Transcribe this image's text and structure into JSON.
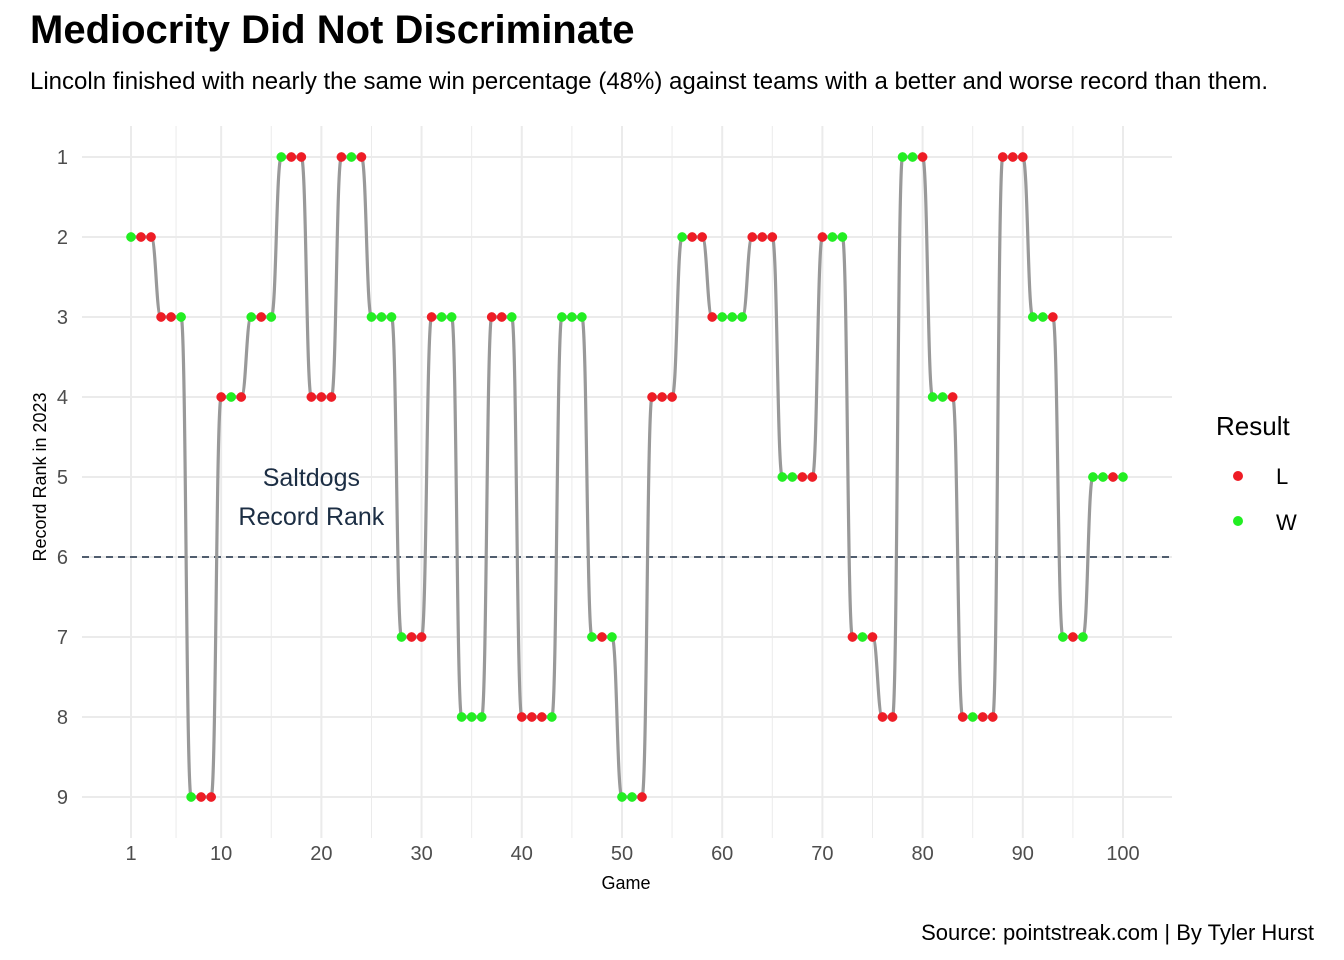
{
  "title": "Mediocrity Did Not Discriminate",
  "subtitle": "Lincoln finished with nearly the same win percentage (48%) against teams with a better and worse record than them.",
  "caption": "Source: pointstreak.com | By Tyler Hurst",
  "colors": {
    "L": "#ee1c25",
    "W": "#22ee22",
    "line": "#999999",
    "reference": "#1c2e44",
    "grid": "#ebebeb"
  },
  "chart_data": {
    "type": "line",
    "xlabel": "Game",
    "ylabel": "Record Rank in 2023",
    "xlim": [
      1,
      100
    ],
    "ylim": [
      9,
      1
    ],
    "x_ticks": [
      1,
      10,
      20,
      30,
      40,
      50,
      60,
      70,
      80,
      90,
      100
    ],
    "y_ticks": [
      1,
      2,
      3,
      4,
      5,
      6,
      7,
      8,
      9
    ],
    "y_reversed": true,
    "grid": true,
    "reference_line": {
      "y": 6,
      "style": "dashed"
    },
    "annotation": {
      "lines": [
        "Saltdogs",
        "Record Rank"
      ],
      "x": 19,
      "y": 5.25
    },
    "legend": {
      "title": "Result",
      "position": "right",
      "entries": [
        "L",
        "W"
      ]
    },
    "games": [
      1,
      2,
      3,
      4,
      5,
      6,
      7,
      8,
      9,
      10,
      11,
      12,
      13,
      14,
      15,
      16,
      17,
      18,
      19,
      20,
      21,
      22,
      23,
      24,
      25,
      26,
      27,
      28,
      29,
      30,
      31,
      32,
      33,
      34,
      35,
      36,
      37,
      38,
      39,
      40,
      41,
      42,
      43,
      44,
      45,
      46,
      47,
      48,
      49,
      50,
      51,
      52,
      53,
      54,
      55,
      56,
      57,
      58,
      59,
      60,
      61,
      62,
      63,
      64,
      65,
      66,
      67,
      68,
      69,
      70,
      71,
      72,
      73,
      74,
      75,
      76,
      77,
      78,
      79,
      80,
      81,
      82,
      83,
      84,
      85,
      86,
      87,
      88,
      89,
      90,
      91,
      92,
      93,
      94,
      95,
      96,
      97,
      98,
      99,
      100
    ],
    "opponent_rank": [
      2,
      2,
      2,
      3,
      3,
      3,
      9,
      9,
      9,
      4,
      4,
      4,
      3,
      3,
      3,
      1,
      1,
      1,
      4,
      4,
      4,
      1,
      1,
      1,
      3,
      3,
      3,
      7,
      7,
      7,
      3,
      3,
      3,
      8,
      8,
      8,
      3,
      3,
      3,
      8,
      8,
      8,
      8,
      3,
      3,
      3,
      7,
      7,
      7,
      9,
      9,
      9,
      4,
      4,
      4,
      2,
      2,
      2,
      3,
      3,
      3,
      3,
      2,
      2,
      2,
      5,
      5,
      5,
      5,
      2,
      2,
      2,
      7,
      7,
      7,
      8,
      8,
      1,
      1,
      1,
      4,
      4,
      4,
      8,
      8,
      8,
      8,
      1,
      1,
      1,
      3,
      3,
      3,
      7,
      7,
      7,
      5,
      5,
      5,
      5
    ],
    "result": [
      "W",
      "L",
      "L",
      "L",
      "L",
      "W",
      "W",
      "L",
      "L",
      "L",
      "W",
      "L",
      "W",
      "L",
      "W",
      "W",
      "L",
      "L",
      "L",
      "L",
      "L",
      "L",
      "W",
      "L",
      "W",
      "W",
      "W",
      "W",
      "L",
      "L",
      "L",
      "W",
      "W",
      "W",
      "W",
      "W",
      "L",
      "L",
      "W",
      "L",
      "L",
      "L",
      "W",
      "W",
      "W",
      "W",
      "W",
      "L",
      "W",
      "W",
      "W",
      "L",
      "L",
      "L",
      "L",
      "W",
      "L",
      "L",
      "L",
      "W",
      "W",
      "W",
      "L",
      "L",
      "L",
      "W",
      "W",
      "L",
      "L",
      "L",
      "W",
      "W",
      "L",
      "W",
      "L",
      "L",
      "L",
      "W",
      "W",
      "L",
      "W",
      "W",
      "L",
      "L",
      "W",
      "L",
      "L",
      "L",
      "L",
      "L",
      "W",
      "W",
      "L",
      "W",
      "L",
      "W",
      "W",
      "W",
      "L",
      "W"
    ]
  }
}
